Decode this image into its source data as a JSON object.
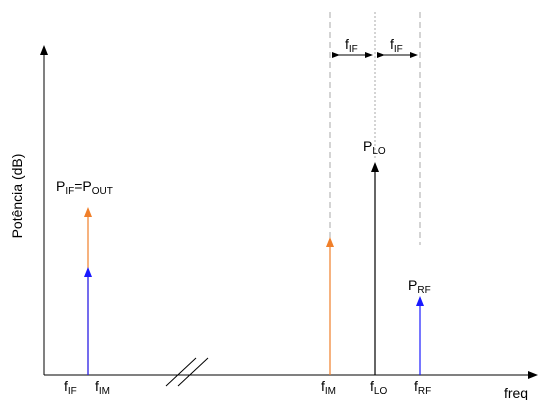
{
  "diagram": {
    "y_axis_label": "Potência (dB)",
    "x_axis_label": "freq",
    "colors": {
      "orange": "#f07f2a",
      "blue": "#1a1aff",
      "black": "#000000",
      "guide": "#aaaaaa"
    },
    "x_ticks": [
      {
        "main": "f",
        "sub": "IF"
      },
      {
        "main": "f",
        "sub": "IM"
      },
      {
        "main": "f",
        "sub": "IM"
      },
      {
        "main": "f",
        "sub": "LO"
      },
      {
        "main": "f",
        "sub": "RF"
      }
    ],
    "signal_labels": {
      "pif_main": "P",
      "pif_sub": "IF",
      "eq": "=",
      "pout_main": "P",
      "pout_sub": "OUT",
      "plo_main": "P",
      "plo_sub": "LO",
      "prf_main": "P",
      "prf_sub": "RF"
    },
    "spacing_labels": [
      {
        "main": "f",
        "sub": "IF"
      },
      {
        "main": "f",
        "sub": "IF"
      }
    ]
  }
}
